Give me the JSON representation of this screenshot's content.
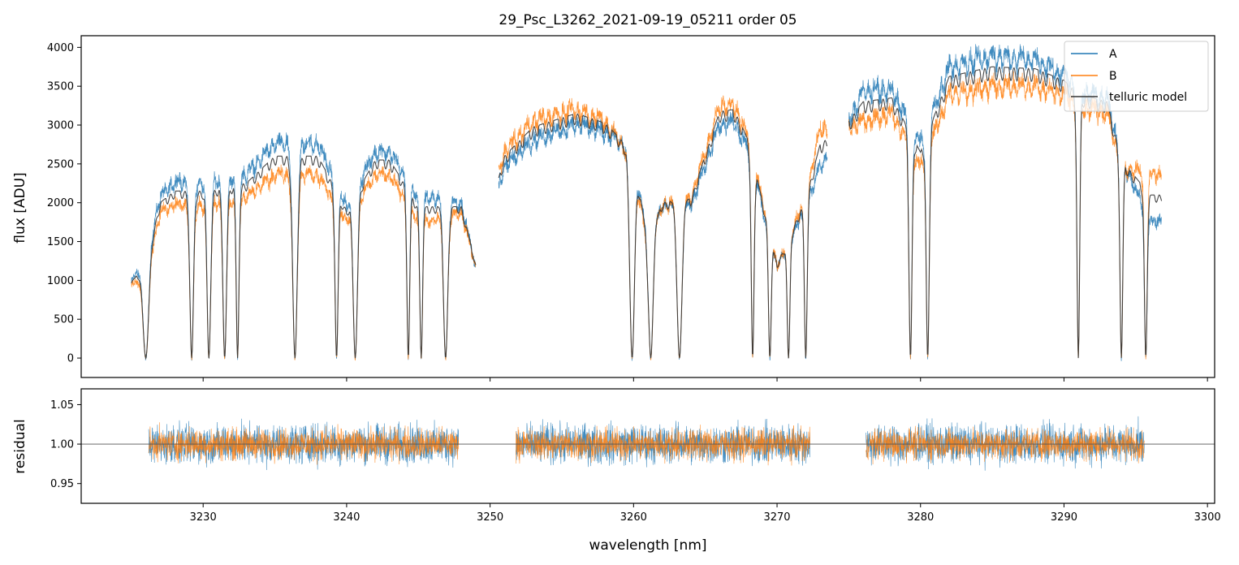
{
  "chart_data": [
    {
      "type": "line",
      "title": "29_Psc_L3262_2021-09-19_05211  order 05",
      "xlabel": "",
      "ylabel": "flux [ADU]",
      "xlim": [
        3221.5,
        3300.5
      ],
      "ylim": [
        -250,
        4150
      ],
      "yticks": [
        0,
        500,
        1000,
        1500,
        2000,
        2500,
        3000,
        3500,
        4000
      ],
      "ytick_labels": [
        "0",
        "500",
        "1000",
        "1500",
        "2000",
        "2500",
        "3000",
        "3500",
        "4000"
      ],
      "legend_position": "top-right",
      "segments": [
        [
          3225.0,
          3249.0
        ],
        [
          3250.6,
          3273.5
        ],
        [
          3275.0,
          3296.8
        ]
      ],
      "series": [
        {
          "name": "A",
          "color": "#1f77b4",
          "envelope": [
            [
              3225,
              1000
            ],
            [
              3226,
              1300
            ],
            [
              3227,
              2100
            ],
            [
              3228,
              2300
            ],
            [
              3230,
              2300
            ],
            [
              3233,
              2400
            ],
            [
              3235,
              2800
            ],
            [
              3238,
              2800
            ],
            [
              3240,
              2000
            ],
            [
              3242,
              2700
            ],
            [
              3243,
              2700
            ],
            [
              3245,
              2100
            ],
            [
              3246,
              2100
            ],
            [
              3248,
              2000
            ],
            [
              3249,
              1200
            ],
            [
              3251,
              2500
            ],
            [
              3253,
              2850
            ],
            [
              3256,
              3050
            ],
            [
              3258,
              2950
            ],
            [
              3260,
              2700
            ],
            [
              3261,
              1500
            ],
            [
              3262,
              2000
            ],
            [
              3264,
              2000
            ],
            [
              3266,
              3050
            ],
            [
              3267,
              3100
            ],
            [
              3268,
              2700
            ],
            [
              3270,
              1200
            ],
            [
              3272,
              2000
            ],
            [
              3273,
              2500
            ],
            [
              3275,
              3100
            ],
            [
              3276,
              3500
            ],
            [
              3278,
              3500
            ],
            [
              3280,
              2800
            ],
            [
              3282,
              3800
            ],
            [
              3285,
              3950
            ],
            [
              3288,
              3900
            ],
            [
              3290,
              3700
            ],
            [
              3291,
              3500
            ],
            [
              3293,
              3400
            ],
            [
              3294,
              2600
            ],
            [
              3296,
              1800
            ]
          ],
          "absorption_lines": [
            [
              3226.0,
              180
            ],
            [
              3229.2,
              120
            ],
            [
              3230.4,
              120
            ],
            [
              3231.5,
              120
            ],
            [
              3232.4,
              90
            ],
            [
              3236.4,
              150
            ],
            [
              3239.3,
              100
            ],
            [
              3240.6,
              140
            ],
            [
              3244.3,
              90
            ],
            [
              3245.2,
              90
            ],
            [
              3246.9,
              140
            ],
            [
              3259.9,
              160
            ],
            [
              3261.2,
              140
            ],
            [
              3263.2,
              160
            ],
            [
              3268.3,
              90
            ],
            [
              3269.5,
              90
            ],
            [
              3270.8,
              90
            ],
            [
              3272.0,
              90
            ],
            [
              3279.3,
              100
            ],
            [
              3280.5,
              100
            ],
            [
              3291.0,
              90
            ],
            [
              3294.0,
              90
            ],
            [
              3295.7,
              90
            ]
          ]
        },
        {
          "name": "B",
          "color": "#ff7f0e",
          "envelope": [
            [
              3225,
              950
            ],
            [
              3226,
              1100
            ],
            [
              3227,
              1900
            ],
            [
              3228,
              2000
            ],
            [
              3230,
              2000
            ],
            [
              3233,
              2100
            ],
            [
              3235,
              2400
            ],
            [
              3238,
              2400
            ],
            [
              3240,
              1800
            ],
            [
              3242,
              2400
            ],
            [
              3243,
              2400
            ],
            [
              3245,
              1800
            ],
            [
              3246,
              1800
            ],
            [
              3248,
              1900
            ],
            [
              3249,
              1200
            ],
            [
              3251,
              2700
            ],
            [
              3253,
              3100
            ],
            [
              3256,
              3250
            ],
            [
              3258,
              3100
            ],
            [
              3260,
              2600
            ],
            [
              3261,
              1400
            ],
            [
              3262,
              2000
            ],
            [
              3264,
              2100
            ],
            [
              3266,
              3300
            ],
            [
              3267,
              3300
            ],
            [
              3268,
              2900
            ],
            [
              3270,
              1200
            ],
            [
              3272,
              2100
            ],
            [
              3273,
              3000
            ],
            [
              3275,
              3000
            ],
            [
              3276,
              3100
            ],
            [
              3278,
              3200
            ],
            [
              3280,
              2500
            ],
            [
              3282,
              3450
            ],
            [
              3285,
              3550
            ],
            [
              3288,
              3550
            ],
            [
              3290,
              3450
            ],
            [
              3291,
              3300
            ],
            [
              3293,
              3200
            ],
            [
              3294,
              2500
            ],
            [
              3296,
              2400
            ]
          ],
          "absorption_lines": [
            [
              3226.0,
              180
            ],
            [
              3229.2,
              120
            ],
            [
              3230.4,
              120
            ],
            [
              3231.5,
              120
            ],
            [
              3232.4,
              90
            ],
            [
              3236.4,
              150
            ],
            [
              3239.3,
              100
            ],
            [
              3240.6,
              140
            ],
            [
              3244.3,
              90
            ],
            [
              3245.2,
              90
            ],
            [
              3246.9,
              140
            ],
            [
              3259.9,
              160
            ],
            [
              3261.2,
              140
            ],
            [
              3263.2,
              160
            ],
            [
              3268.3,
              90
            ],
            [
              3269.5,
              90
            ],
            [
              3270.8,
              90
            ],
            [
              3272.0,
              90
            ],
            [
              3279.3,
              100
            ],
            [
              3280.5,
              100
            ],
            [
              3291.0,
              90
            ],
            [
              3294.0,
              90
            ],
            [
              3295.7,
              90
            ]
          ]
        },
        {
          "name": "telluric model",
          "color": "#333333",
          "envelope": [
            [
              3225,
              980
            ],
            [
              3226,
              1200
            ],
            [
              3227,
              2000
            ],
            [
              3228,
              2150
            ],
            [
              3230,
              2150
            ],
            [
              3233,
              2250
            ],
            [
              3235,
              2600
            ],
            [
              3238,
              2600
            ],
            [
              3240,
              1900
            ],
            [
              3242,
              2550
            ],
            [
              3243,
              2550
            ],
            [
              3245,
              1950
            ],
            [
              3246,
              1950
            ],
            [
              3248,
              1950
            ],
            [
              3249,
              1200
            ],
            [
              3251,
              2600
            ],
            [
              3253,
              2975
            ],
            [
              3256,
              3150
            ],
            [
              3258,
              3025
            ],
            [
              3260,
              2650
            ],
            [
              3261,
              1450
            ],
            [
              3262,
              2000
            ],
            [
              3264,
              2050
            ],
            [
              3266,
              3175
            ],
            [
              3267,
              3200
            ],
            [
              3268,
              2800
            ],
            [
              3270,
              1200
            ],
            [
              3272,
              2050
            ],
            [
              3273,
              2750
            ],
            [
              3275,
              3050
            ],
            [
              3276,
              3300
            ],
            [
              3278,
              3350
            ],
            [
              3280,
              2650
            ],
            [
              3282,
              3625
            ],
            [
              3285,
              3750
            ],
            [
              3288,
              3725
            ],
            [
              3290,
              3575
            ],
            [
              3291,
              3400
            ],
            [
              3293,
              3300
            ],
            [
              3294,
              2550
            ],
            [
              3296,
              2100
            ]
          ],
          "absorption_lines": [
            [
              3226.0,
              180
            ],
            [
              3229.2,
              120
            ],
            [
              3230.4,
              120
            ],
            [
              3231.5,
              120
            ],
            [
              3232.4,
              90
            ],
            [
              3236.4,
              150
            ],
            [
              3239.3,
              100
            ],
            [
              3240.6,
              140
            ],
            [
              3244.3,
              90
            ],
            [
              3245.2,
              90
            ],
            [
              3246.9,
              140
            ],
            [
              3259.9,
              160
            ],
            [
              3261.2,
              140
            ],
            [
              3263.2,
              160
            ],
            [
              3268.3,
              90
            ],
            [
              3269.5,
              90
            ],
            [
              3270.8,
              90
            ],
            [
              3272.0,
              90
            ],
            [
              3279.3,
              100
            ],
            [
              3280.5,
              100
            ],
            [
              3291.0,
              90
            ],
            [
              3294.0,
              90
            ],
            [
              3295.7,
              90
            ]
          ]
        }
      ]
    },
    {
      "type": "line",
      "title": "",
      "xlabel": "wavelength [nm]",
      "ylabel": "residual",
      "xlim": [
        3221.5,
        3300.5
      ],
      "ylim": [
        0.925,
        1.07
      ],
      "xticks": [
        3230,
        3240,
        3250,
        3260,
        3270,
        3280,
        3290,
        3300
      ],
      "xtick_labels": [
        "3230",
        "3240",
        "3250",
        "3260",
        "3270",
        "3280",
        "3290",
        "3300"
      ],
      "yticks": [
        0.95,
        1.0,
        1.05
      ],
      "ytick_labels": [
        "0.95",
        "1.00",
        "1.05"
      ],
      "reference_line": 1.0,
      "segments": [
        [
          3226.2,
          3247.8
        ],
        [
          3251.8,
          3272.3
        ],
        [
          3276.2,
          3295.6
        ]
      ],
      "series": [
        {
          "name": "A",
          "color": "#1f77b4",
          "center": 1.0,
          "amplitude": 0.028
        },
        {
          "name": "B",
          "color": "#ff7f0e",
          "center": 1.0,
          "amplitude": 0.022
        }
      ]
    }
  ]
}
